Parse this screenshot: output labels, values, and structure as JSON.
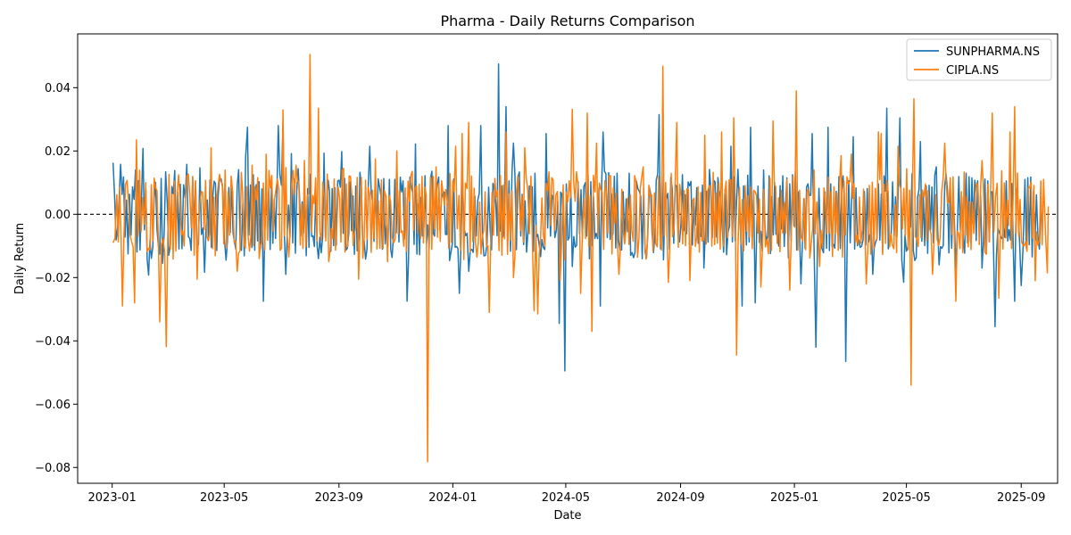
{
  "chart_data": {
    "type": "line",
    "title": "Pharma - Daily Returns Comparison",
    "xlabel": "Date",
    "ylabel": "Daily Return",
    "xlim": [
      "2022-11-25",
      "2025-10-10"
    ],
    "ylim": [
      -0.085,
      0.057
    ],
    "x_ticks": [
      "2023-01-01",
      "2023-05-01",
      "2023-09-01",
      "2024-01-01",
      "2024-05-01",
      "2024-09-01",
      "2025-01-01",
      "2025-05-01",
      "2025-09-01"
    ],
    "x_tick_labels": [
      "2023-01",
      "2023-05",
      "2023-09",
      "2024-01",
      "2024-05",
      "2024-09",
      "2025-01",
      "2025-05",
      "2025-09"
    ],
    "y_ticks": [
      -0.08,
      -0.06,
      -0.04,
      -0.02,
      0.0,
      0.02,
      0.04
    ],
    "y_tick_labels": [
      "−0.08",
      "−0.06",
      "−0.04",
      "−0.02",
      "0.00",
      "0.02",
      "0.04"
    ],
    "grid": false,
    "legend_position": "top-right",
    "reference_line": {
      "y": 0.0,
      "style": "dashed",
      "color": "#000000"
    },
    "series": [
      {
        "name": "SUNPHARMA.NS",
        "color": "#1f77b4",
        "points": [
          [
            "2023-01-02",
            0.0163
          ],
          [
            "2023-01-10",
            0.0158
          ],
          [
            "2023-01-18",
            -0.0125
          ],
          [
            "2023-01-26",
            0.014
          ],
          [
            "2023-02-03",
            0.0208
          ],
          [
            "2023-02-09",
            -0.0192
          ],
          [
            "2023-02-15",
            0.005
          ],
          [
            "2023-02-24",
            -0.0155
          ],
          [
            "2023-03-06",
            0.0088
          ],
          [
            "2023-03-15",
            0.0095
          ],
          [
            "2023-03-22",
            0.0158
          ],
          [
            "2023-04-05",
            0.0147
          ],
          [
            "2023-04-10",
            -0.0183
          ],
          [
            "2023-04-26",
            0.0112
          ],
          [
            "2023-05-03",
            -0.0145
          ],
          [
            "2023-05-24",
            0.018
          ],
          [
            "2023-05-26",
            0.0275
          ],
          [
            "2023-06-12",
            -0.0275
          ],
          [
            "2023-06-28",
            0.028
          ],
          [
            "2023-07-03",
            0.0291
          ],
          [
            "2023-07-06",
            -0.019
          ],
          [
            "2023-07-12",
            0.0192
          ],
          [
            "2023-08-10",
            -0.014
          ],
          [
            "2023-08-16",
            0.0193
          ],
          [
            "2023-09-04",
            0.0198
          ],
          [
            "2023-09-22",
            -0.0075
          ],
          [
            "2023-10-04",
            0.0215
          ],
          [
            "2023-10-25",
            0.011
          ],
          [
            "2023-11-13",
            -0.0275
          ],
          [
            "2023-11-22",
            0.0222
          ],
          [
            "2023-12-11",
            -0.006
          ],
          [
            "2023-12-27",
            0.028
          ],
          [
            "2024-01-08",
            -0.025
          ],
          [
            "2024-01-18",
            -0.018
          ],
          [
            "2024-01-31",
            0.028
          ],
          [
            "2024-02-10",
            -0.005
          ],
          [
            "2024-02-19",
            0.0475
          ],
          [
            "2024-02-27",
            0.034
          ],
          [
            "2024-03-06",
            0.0225
          ],
          [
            "2024-03-20",
            -0.012
          ],
          [
            "2024-04-10",
            0.0255
          ],
          [
            "2024-04-24",
            -0.0345
          ],
          [
            "2024-04-30",
            -0.0495
          ],
          [
            "2024-05-08",
            -0.0165
          ],
          [
            "2024-05-22",
            0.01
          ],
          [
            "2024-06-07",
            -0.029
          ],
          [
            "2024-06-10",
            0.026
          ],
          [
            "2024-06-25",
            0.013
          ],
          [
            "2024-07-08",
            0.013
          ],
          [
            "2024-07-25",
            -0.012
          ],
          [
            "2024-08-09",
            0.0315
          ],
          [
            "2024-08-20",
            -0.011
          ],
          [
            "2024-09-03",
            0.0125
          ],
          [
            "2024-09-26",
            -0.017
          ],
          [
            "2024-10-14",
            0.0055
          ],
          [
            "2024-10-25",
            0.0215
          ],
          [
            "2024-11-06",
            -0.029
          ],
          [
            "2024-11-15",
            0.0275
          ],
          [
            "2024-11-20",
            -0.028
          ],
          [
            "2024-11-29",
            0.014
          ],
          [
            "2024-12-24",
            0.0115
          ],
          [
            "2025-01-08",
            -0.022
          ],
          [
            "2025-01-20",
            0.0255
          ],
          [
            "2025-01-24",
            -0.042
          ],
          [
            "2025-02-06",
            0.0275
          ],
          [
            "2025-02-25",
            -0.0465
          ],
          [
            "2025-03-05",
            0.0245
          ],
          [
            "2025-03-26",
            -0.019
          ],
          [
            "2025-04-10",
            0.0335
          ],
          [
            "2025-04-24",
            0.0305
          ],
          [
            "2025-04-28",
            -0.0215
          ],
          [
            "2025-05-16",
            0.023
          ],
          [
            "2025-06-02",
            0.015
          ],
          [
            "2025-06-05",
            -0.016
          ],
          [
            "2025-06-23",
            -0.0175
          ],
          [
            "2025-07-04",
            0.013
          ],
          [
            "2025-07-21",
            -0.017
          ],
          [
            "2025-08-04",
            -0.0355
          ],
          [
            "2025-08-25",
            -0.0275
          ],
          [
            "2025-09-01",
            -0.0225
          ],
          [
            "2025-09-05",
            0.011
          ],
          [
            "2025-09-22",
            0.002
          ]
        ]
      },
      {
        "name": "CIPLA.NS",
        "color": "#ff7f0e",
        "points": [
          [
            "2023-01-02",
            -0.009
          ],
          [
            "2023-01-06",
            0.0062
          ],
          [
            "2023-01-12",
            -0.029
          ],
          [
            "2023-01-27",
            0.0235
          ],
          [
            "2023-01-25",
            -0.028
          ],
          [
            "2023-02-06",
            0.01
          ],
          [
            "2023-02-21",
            -0.034
          ],
          [
            "2023-02-28",
            -0.0418
          ],
          [
            "2023-03-22",
            0.012
          ],
          [
            "2023-04-02",
            -0.0205
          ],
          [
            "2023-04-17",
            0.021
          ],
          [
            "2023-05-02",
            0.014
          ],
          [
            "2023-05-15",
            -0.018
          ],
          [
            "2023-05-31",
            0.0155
          ],
          [
            "2023-06-15",
            0.019
          ],
          [
            "2023-07-03",
            0.033
          ],
          [
            "2023-07-17",
            0.0155
          ],
          [
            "2023-07-26",
            0.017
          ],
          [
            "2023-08-01",
            0.0505
          ],
          [
            "2023-08-10",
            0.0335
          ],
          [
            "2023-08-21",
            -0.015
          ],
          [
            "2023-09-06",
            0.0145
          ],
          [
            "2023-09-22",
            -0.0205
          ],
          [
            "2023-10-10",
            0.0175
          ],
          [
            "2023-10-23",
            -0.015
          ],
          [
            "2023-11-02",
            0.02
          ],
          [
            "2023-11-20",
            -0.005
          ],
          [
            "2023-12-05",
            -0.0782
          ],
          [
            "2023-12-14",
            0.015
          ],
          [
            "2024-01-04",
            0.0215
          ],
          [
            "2024-01-11",
            0.0255
          ],
          [
            "2024-01-18",
            0.029
          ],
          [
            "2024-02-09",
            -0.031
          ],
          [
            "2024-02-27",
            0.026
          ],
          [
            "2024-03-06",
            -0.02
          ],
          [
            "2024-03-18",
            0.021
          ],
          [
            "2024-03-28",
            -0.0305
          ],
          [
            "2024-04-01",
            -0.0315
          ],
          [
            "2024-04-25",
            -0.021
          ],
          [
            "2024-05-08",
            0.0332
          ],
          [
            "2024-05-17",
            -0.025
          ],
          [
            "2024-05-29",
            -0.037
          ],
          [
            "2024-05-24",
            0.032
          ],
          [
            "2024-06-03",
            0.0225
          ],
          [
            "2024-06-27",
            -0.019
          ],
          [
            "2024-07-23",
            0.015
          ],
          [
            "2024-08-13",
            0.0468
          ],
          [
            "2024-08-19",
            -0.0215
          ],
          [
            "2024-08-28",
            0.029
          ],
          [
            "2024-09-11",
            -0.021
          ],
          [
            "2024-09-27",
            0.025
          ],
          [
            "2024-10-15",
            0.026
          ],
          [
            "2024-10-28",
            0.0305
          ],
          [
            "2024-10-31",
            -0.0445
          ],
          [
            "2024-11-26",
            -0.023
          ],
          [
            "2024-12-09",
            0.0295
          ],
          [
            "2024-12-27",
            -0.024
          ],
          [
            "2025-01-03",
            0.039
          ],
          [
            "2025-01-10",
            -0.0085
          ],
          [
            "2025-01-28",
            -0.0165
          ],
          [
            "2025-02-20",
            0.0185
          ],
          [
            "2025-03-03",
            0.019
          ],
          [
            "2025-03-19",
            -0.022
          ],
          [
            "2025-04-01",
            0.026
          ],
          [
            "2025-04-04",
            0.0255
          ],
          [
            "2025-04-22",
            0.0215
          ],
          [
            "2025-05-06",
            -0.054
          ],
          [
            "2025-05-09",
            0.0365
          ],
          [
            "2025-05-29",
            -0.019
          ],
          [
            "2025-06-11",
            0.0225
          ],
          [
            "2025-06-23",
            -0.0275
          ],
          [
            "2025-07-21",
            0.017
          ],
          [
            "2025-08-01",
            0.032
          ],
          [
            "2025-08-08",
            -0.0265
          ],
          [
            "2025-08-20",
            0.026
          ],
          [
            "2025-08-25",
            0.034
          ],
          [
            "2025-09-16",
            -0.021
          ],
          [
            "2025-09-25",
            0.011
          ],
          [
            "2025-09-29",
            -0.0185
          ],
          [
            "2025-09-30",
            0.0025
          ]
        ]
      }
    ]
  }
}
